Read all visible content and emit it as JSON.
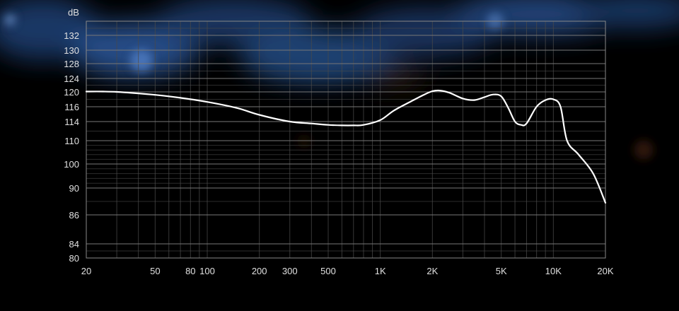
{
  "chart_data": {
    "type": "line",
    "title": "",
    "xlabel": "",
    "ylabel": "dB",
    "x_scale": "log",
    "grid": true,
    "xlim": [
      20,
      20000
    ],
    "ylim": [
      80,
      136
    ],
    "x_ticks": [
      {
        "value": 20,
        "label": "20"
      },
      {
        "value": 50,
        "label": "50"
      },
      {
        "value": 80,
        "label": "80"
      },
      {
        "value": 100,
        "label": "100"
      },
      {
        "value": 200,
        "label": "200"
      },
      {
        "value": 300,
        "label": "300"
      },
      {
        "value": 500,
        "label": "500"
      },
      {
        "value": 1000,
        "label": "1K"
      },
      {
        "value": 2000,
        "label": "2K"
      },
      {
        "value": 5000,
        "label": "5K"
      },
      {
        "value": 10000,
        "label": "10K"
      },
      {
        "value": 20000,
        "label": "20K"
      }
    ],
    "y_ticks": [
      {
        "value": 132,
        "label": "132"
      },
      {
        "value": 130,
        "label": "130"
      },
      {
        "value": 128,
        "label": "128"
      },
      {
        "value": 124,
        "label": "124"
      },
      {
        "value": 120,
        "label": "120"
      },
      {
        "value": 116,
        "label": "116"
      },
      {
        "value": 114,
        "label": "114"
      },
      {
        "value": 110,
        "label": "110"
      },
      {
        "value": 100,
        "label": "100"
      },
      {
        "value": 90,
        "label": "90"
      },
      {
        "value": 86,
        "label": "86"
      },
      {
        "value": 84,
        "label": "84"
      },
      {
        "value": 80,
        "label": "80"
      }
    ],
    "series": [
      {
        "x": [
          20,
          25,
          30,
          40,
          50,
          70,
          100,
          150,
          200,
          300,
          400,
          500,
          600,
          700,
          800,
          1000,
          1200,
          1500,
          1800,
          2000,
          2200,
          2500,
          3000,
          3500,
          4000,
          4500,
          5000,
          5500,
          6000,
          6500,
          7000,
          8000,
          9000,
          10000,
          11000,
          12000,
          14000,
          17000,
          20000
        ],
        "y": [
          120.1,
          120.1,
          120,
          119.6,
          119.2,
          118.4,
          117.3,
          115.8,
          114.9,
          114.0,
          113.6,
          113.3,
          113.2,
          113.2,
          113.3,
          114.2,
          115.5,
          117.4,
          119.3,
          120.2,
          120.4,
          119.8,
          118.2,
          117.8,
          118.6,
          119.3,
          118.8,
          115.8,
          114.0,
          113.3,
          113.6,
          116.0,
          117.8,
          118.0,
          116.0,
          110.0,
          104.0,
          96.0,
          87.8
        ]
      }
    ],
    "colors": {
      "background": "#000000",
      "line": "#ffffff",
      "grid": "#4a4a4a",
      "text": "#e0e0e0",
      "glow": "#2a4f8f"
    }
  }
}
